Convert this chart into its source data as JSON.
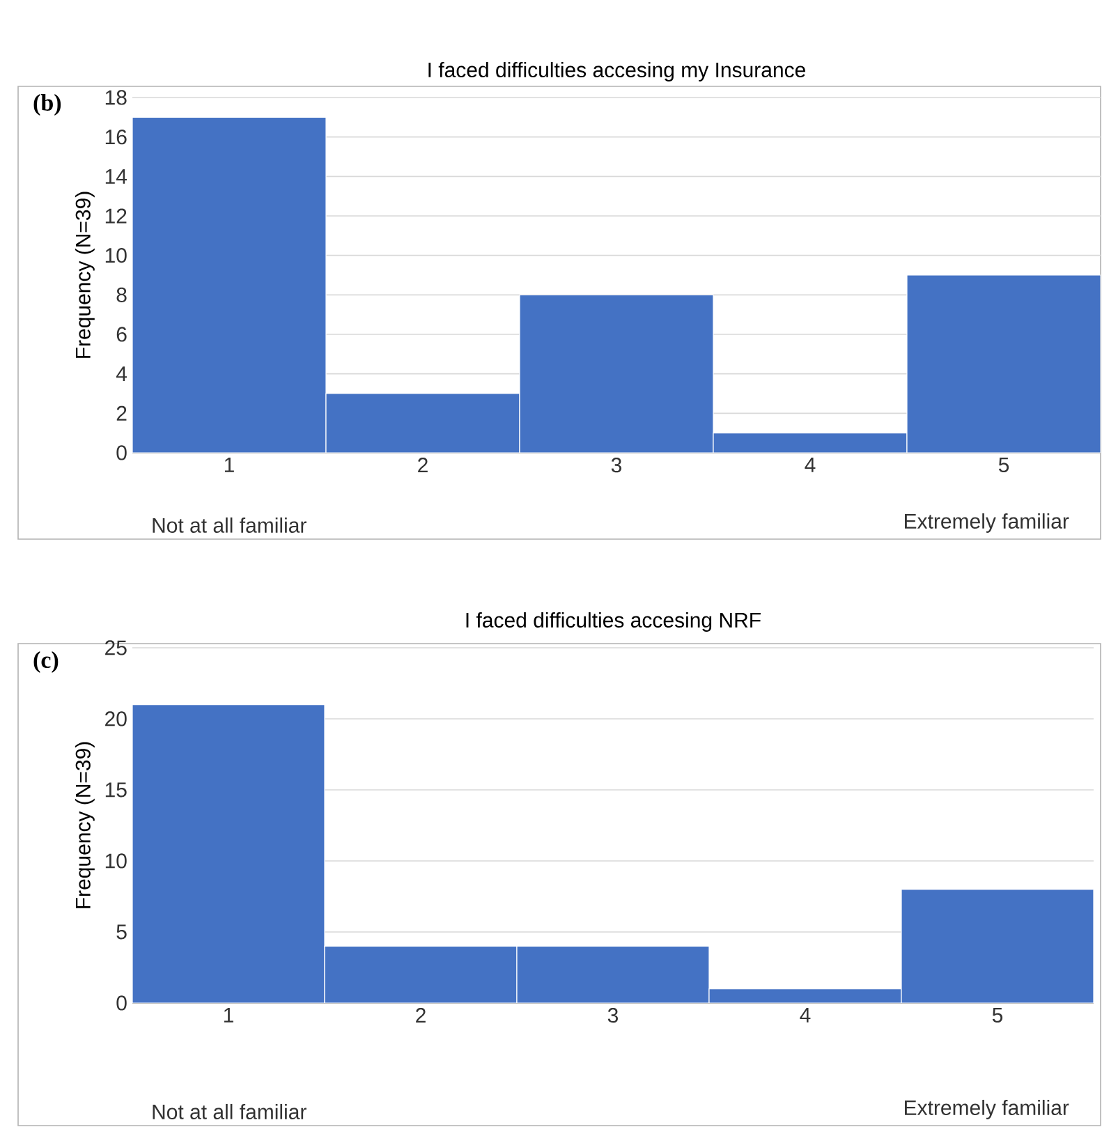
{
  "chart_data": [
    {
      "type": "bar",
      "title": "I faced difficulties accesing my Insurance",
      "ylabel": "Frequency (N=39)",
      "categories": [
        "1",
        "2",
        "3",
        "4",
        "5"
      ],
      "values": [
        17,
        3,
        8,
        1,
        9
      ],
      "color": "#4472c4",
      "ylim": [
        0,
        18
      ],
      "yticks": [
        0,
        2,
        4,
        6,
        8,
        10,
        12,
        14,
        16,
        18
      ],
      "grid": "y",
      "annotations": [
        "(b)",
        "Not at all familiar",
        "Extremely familiar"
      ]
    },
    {
      "type": "bar",
      "title": "I faced difficulties accesing NRF",
      "ylabel": "Frequency (N=39)",
      "categories": [
        "1",
        "2",
        "3",
        "4",
        "5"
      ],
      "values": [
        21,
        4,
        4,
        1,
        8
      ],
      "color": "#4472c4",
      "ylim": [
        0,
        25
      ],
      "yticks": [
        0,
        5,
        10,
        15,
        20,
        25
      ],
      "grid": "y",
      "annotations": [
        "(c)",
        "Not at all familiar",
        "Extremely familiar"
      ]
    }
  ]
}
